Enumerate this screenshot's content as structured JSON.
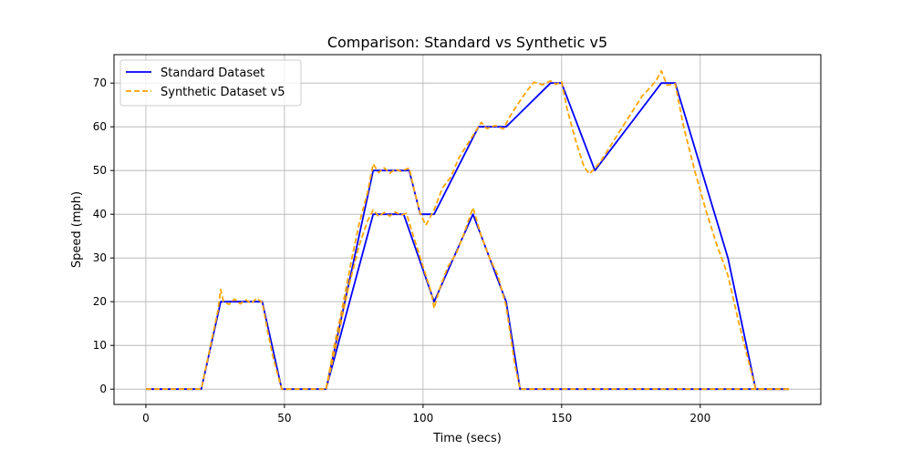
{
  "chart_data": {
    "type": "line",
    "title": "Comparison: Standard vs Synthetic v5",
    "xlabel": "Time (secs)",
    "ylabel": "Speed (mph)",
    "xlim": [
      -11.5,
      243.5
    ],
    "ylim": [
      -3.5,
      76.5
    ],
    "x_ticks": [
      0,
      50,
      100,
      150,
      200
    ],
    "y_ticks": [
      0,
      10,
      20,
      30,
      40,
      50,
      60,
      70
    ],
    "x_tick_labels": [
      "0",
      "50",
      "100",
      "150",
      "200"
    ],
    "y_tick_labels": [
      "0",
      "10",
      "20",
      "30",
      "40",
      "50",
      "60",
      "70"
    ],
    "grid": true,
    "legend_position": "top-left",
    "series": [
      {
        "name": "Standard Dataset",
        "color": "#0000ff",
        "style": "solid",
        "x": [
          0,
          20,
          27,
          42,
          49,
          65,
          82,
          95,
          99,
          104,
          120,
          130,
          146,
          150,
          162,
          186,
          191,
          210,
          220,
          221,
          232
        ],
        "y": [
          0,
          0,
          20,
          20,
          0,
          0,
          50,
          50,
          40,
          40,
          60,
          60,
          70,
          70,
          50,
          70,
          70,
          30,
          0,
          0,
          0
        ]
      },
      {
        "name": "",
        "color": "#0000ff",
        "style": "solid",
        "x": [
          65,
          82,
          93,
          104,
          118,
          130,
          135,
          232
        ],
        "y": [
          0,
          40,
          40,
          20,
          40,
          20,
          0,
          0
        ]
      },
      {
        "name": "Synthetic Dataset v5",
        "color": "#ffa500",
        "style": "dashed",
        "x": [
          0,
          20,
          22,
          24,
          26,
          27,
          28,
          30,
          32,
          34,
          36,
          38,
          40,
          42,
          44,
          46,
          49,
          65,
          68,
          71,
          74,
          77,
          80,
          82,
          84,
          86,
          88,
          90,
          92,
          95,
          97,
          99,
          101,
          104,
          107,
          110,
          113,
          116,
          119,
          121,
          123,
          126,
          129,
          131,
          134,
          137,
          140,
          143,
          146,
          148,
          150,
          152,
          155,
          158,
          160,
          162,
          164,
          167,
          170,
          173,
          176,
          179,
          182,
          184,
          186,
          188,
          191,
          194,
          198,
          202,
          206,
          210,
          214,
          218,
          220,
          221,
          232
        ],
        "y": [
          0,
          0,
          6,
          12,
          18,
          22.8,
          20,
          19.4,
          20.6,
          19.5,
          20.4,
          19.6,
          20.8,
          19.8,
          13,
          7,
          0,
          0,
          10,
          19,
          29,
          38,
          45,
          51.5,
          49.5,
          50.6,
          49.4,
          50.3,
          49.8,
          50.6,
          45,
          40.2,
          37.5,
          41,
          46,
          48.5,
          53,
          56,
          59,
          61,
          59.6,
          60.3,
          59.5,
          62,
          65,
          67.8,
          70.2,
          69.6,
          70.5,
          69.7,
          70.3,
          64,
          57,
          51,
          49.2,
          50.5,
          52,
          55,
          58,
          61,
          64,
          67,
          69,
          70.5,
          72.8,
          69.5,
          69.8,
          60,
          50,
          41,
          33,
          26,
          15,
          5,
          0,
          0,
          0
        ]
      },
      {
        "name": "",
        "color": "#ffa500",
        "style": "dashed",
        "x": [
          65,
          69,
          73,
          77,
          80,
          82,
          84,
          86,
          88,
          90,
          92,
          94,
          97,
          100,
          103,
          104,
          106,
          109,
          112,
          115,
          118,
          121,
          124,
          127,
          130,
          133,
          135,
          232
        ],
        "y": [
          0,
          11,
          23,
          33,
          38.5,
          41,
          39.5,
          40.4,
          39.6,
          40.5,
          39.8,
          40.2,
          34,
          28,
          22,
          18.5,
          23,
          28,
          31,
          36,
          41.5,
          35,
          30,
          26,
          19,
          6,
          0,
          0
        ]
      }
    ]
  }
}
